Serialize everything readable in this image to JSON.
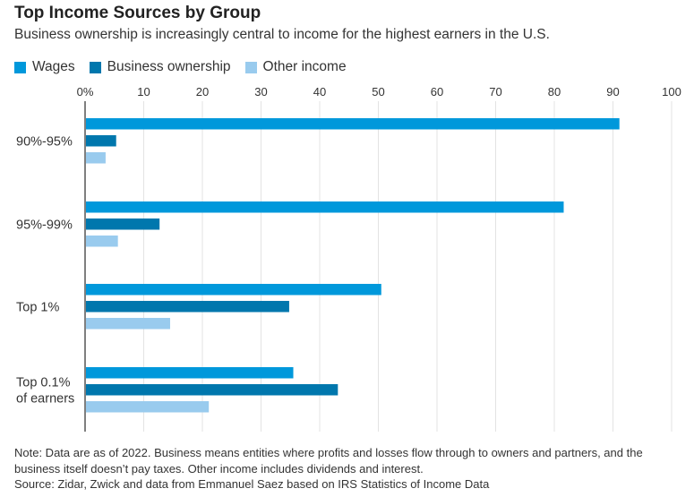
{
  "title": "Top Income Sources by Group",
  "subtitle": "Business ownership is increasingly central to income for the highest earners in the U.S.",
  "note": "Note: Data are as of 2022. Business means entities where profits and losses flow through to owners and partners, and the business itself doesn’t pay taxes. Other income includes dividends and interest.",
  "source": "Source: Zidar, Zwick and data from Emmanuel Saez based on IRS Statistics of Income Data",
  "chart_data": {
    "type": "bar",
    "orientation": "horizontal",
    "title": "Top Income Sources by Group",
    "categories": [
      [
        "90%-95%"
      ],
      [
        "95%-99%"
      ],
      [
        "Top 1%"
      ],
      [
        "Top 0.1%",
        "of earners"
      ]
    ],
    "series": [
      {
        "name": "Wages",
        "color": "#0098DB",
        "values": [
          91.1,
          81.6,
          50.5,
          35.5
        ]
      },
      {
        "name": "Business ownership",
        "color": "#0077AD",
        "values": [
          5.3,
          12.7,
          34.8,
          43.1
        ]
      },
      {
        "name": "Other income",
        "color": "#99CBEE",
        "values": [
          3.5,
          5.6,
          14.5,
          21.1
        ]
      }
    ],
    "xticks": [
      "0%",
      "10",
      "20",
      "30",
      "40",
      "50",
      "60",
      "70",
      "80",
      "90",
      "100"
    ],
    "xlim": [
      0,
      100
    ],
    "grid": true,
    "legend": "top-left"
  }
}
